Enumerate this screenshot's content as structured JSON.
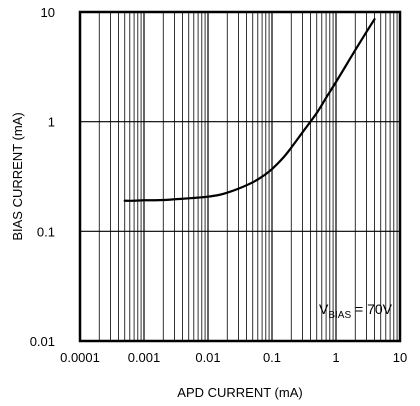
{
  "chart_data": {
    "type": "line",
    "xscale": "log",
    "yscale": "log",
    "xlim": [
      0.0001,
      10
    ],
    "ylim": [
      0.01,
      10
    ],
    "xlabel": "APD CURRENT (mA)",
    "ylabel": "BIAS CURRENT (mA)",
    "x_ticks": [
      {
        "value": 0.0001,
        "label": "0.0001"
      },
      {
        "value": 0.001,
        "label": "0.001"
      },
      {
        "value": 0.01,
        "label": "0.01"
      },
      {
        "value": 0.1,
        "label": "0.1"
      },
      {
        "value": 1,
        "label": "1"
      },
      {
        "value": 10,
        "label": "10"
      }
    ],
    "y_ticks": [
      {
        "value": 0.01,
        "label": "0.01"
      },
      {
        "value": 0.1,
        "label": "0.1"
      },
      {
        "value": 1,
        "label": "1"
      },
      {
        "value": 10,
        "label": "10"
      }
    ],
    "grid": true,
    "series": [
      {
        "color": "#000000",
        "x": [
          0.0005,
          0.0007,
          0.001,
          0.0015,
          0.002,
          0.003,
          0.005,
          0.007,
          0.01,
          0.015,
          0.02,
          0.03,
          0.05,
          0.07,
          0.1,
          0.15,
          0.2,
          0.3,
          0.5,
          0.7,
          1,
          1.5,
          2,
          3,
          4
        ],
        "y": [
          0.19,
          0.19,
          0.192,
          0.192,
          0.193,
          0.196,
          0.2,
          0.203,
          0.207,
          0.215,
          0.225,
          0.245,
          0.28,
          0.315,
          0.37,
          0.47,
          0.58,
          0.8,
          1.2,
          1.65,
          2.3,
          3.4,
          4.5,
          6.6,
          8.6
        ]
      }
    ],
    "annotation": {
      "prefix": "V",
      "sub": "BIAS",
      "suffix": " = 70V",
      "position": "bottom-right"
    }
  }
}
